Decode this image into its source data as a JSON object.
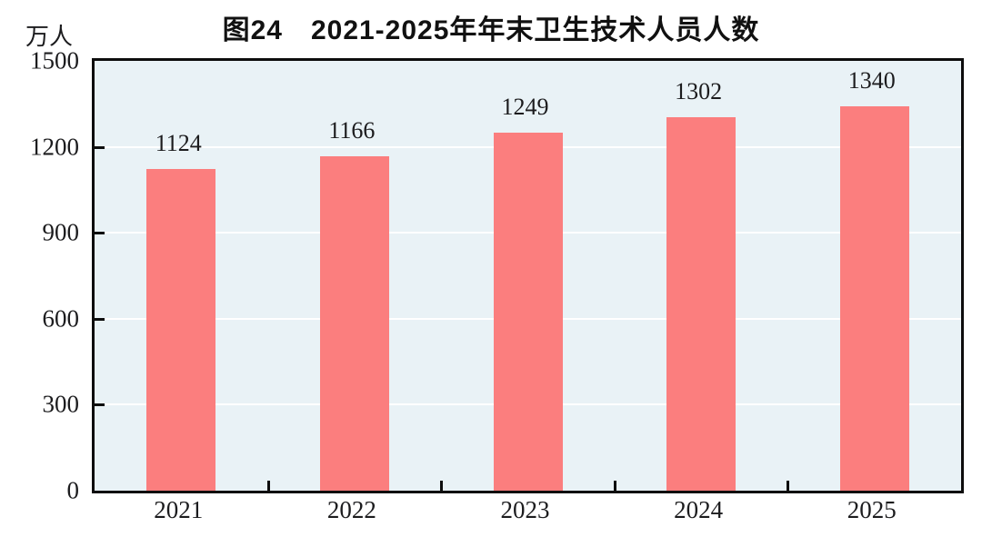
{
  "figure": {
    "title": "图24　2021-2025年年末卫生技术人员人数",
    "unit_label": "万人"
  },
  "colors": {
    "bar": "#FB7E7E",
    "plot_background": "#E9F2F6",
    "gridline": "#FFFFFF",
    "axis": "#0D0D0D",
    "text": "#1C1C1E",
    "title_text": "#111111"
  },
  "chart_data": {
    "type": "bar",
    "title": "图24　2021-2025年年末卫生技术人员人数",
    "categories": [
      "2021",
      "2022",
      "2023",
      "2024",
      "2025"
    ],
    "values": [
      1124,
      1166,
      1249,
      1302,
      1340
    ],
    "data_labels": [
      "1124",
      "1166",
      "1249",
      "1302",
      "1340"
    ],
    "xlabel": "",
    "ylabel": "万人",
    "ylim": [
      0,
      1500
    ],
    "yticks": [
      0,
      300,
      600,
      900,
      1200,
      1500
    ],
    "grid": "horizontal-white",
    "legend": "none",
    "bar_color": "#FB7E7E"
  }
}
